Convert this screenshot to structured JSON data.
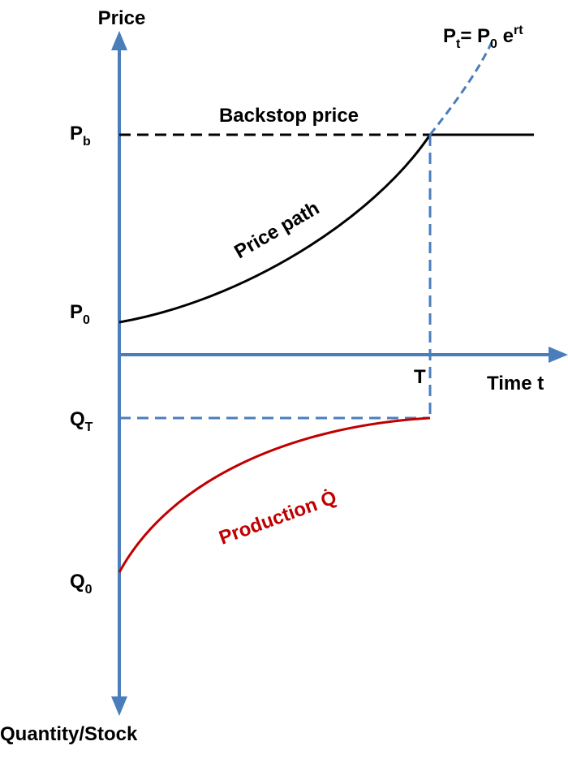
{
  "axes": {
    "y_label": "Price",
    "x_label": "Time t",
    "y_bottom_label": "Quantity/Stock"
  },
  "formula": {
    "p": "P",
    "t": "t",
    "eq": "= P",
    "zero": "0",
    "e": " e",
    "rt": "rt"
  },
  "backstop": "Backstop price",
  "price_path": "Price path",
  "production": "Production Q̇",
  "marks": {
    "p_b": {
      "base": "P",
      "sub": "b"
    },
    "p_0": {
      "base": "P",
      "sub": "0"
    },
    "t": "T",
    "q_t": {
      "base": "Q",
      "sub": "T"
    },
    "q_0": {
      "base": "Q",
      "sub": "0"
    }
  }
}
